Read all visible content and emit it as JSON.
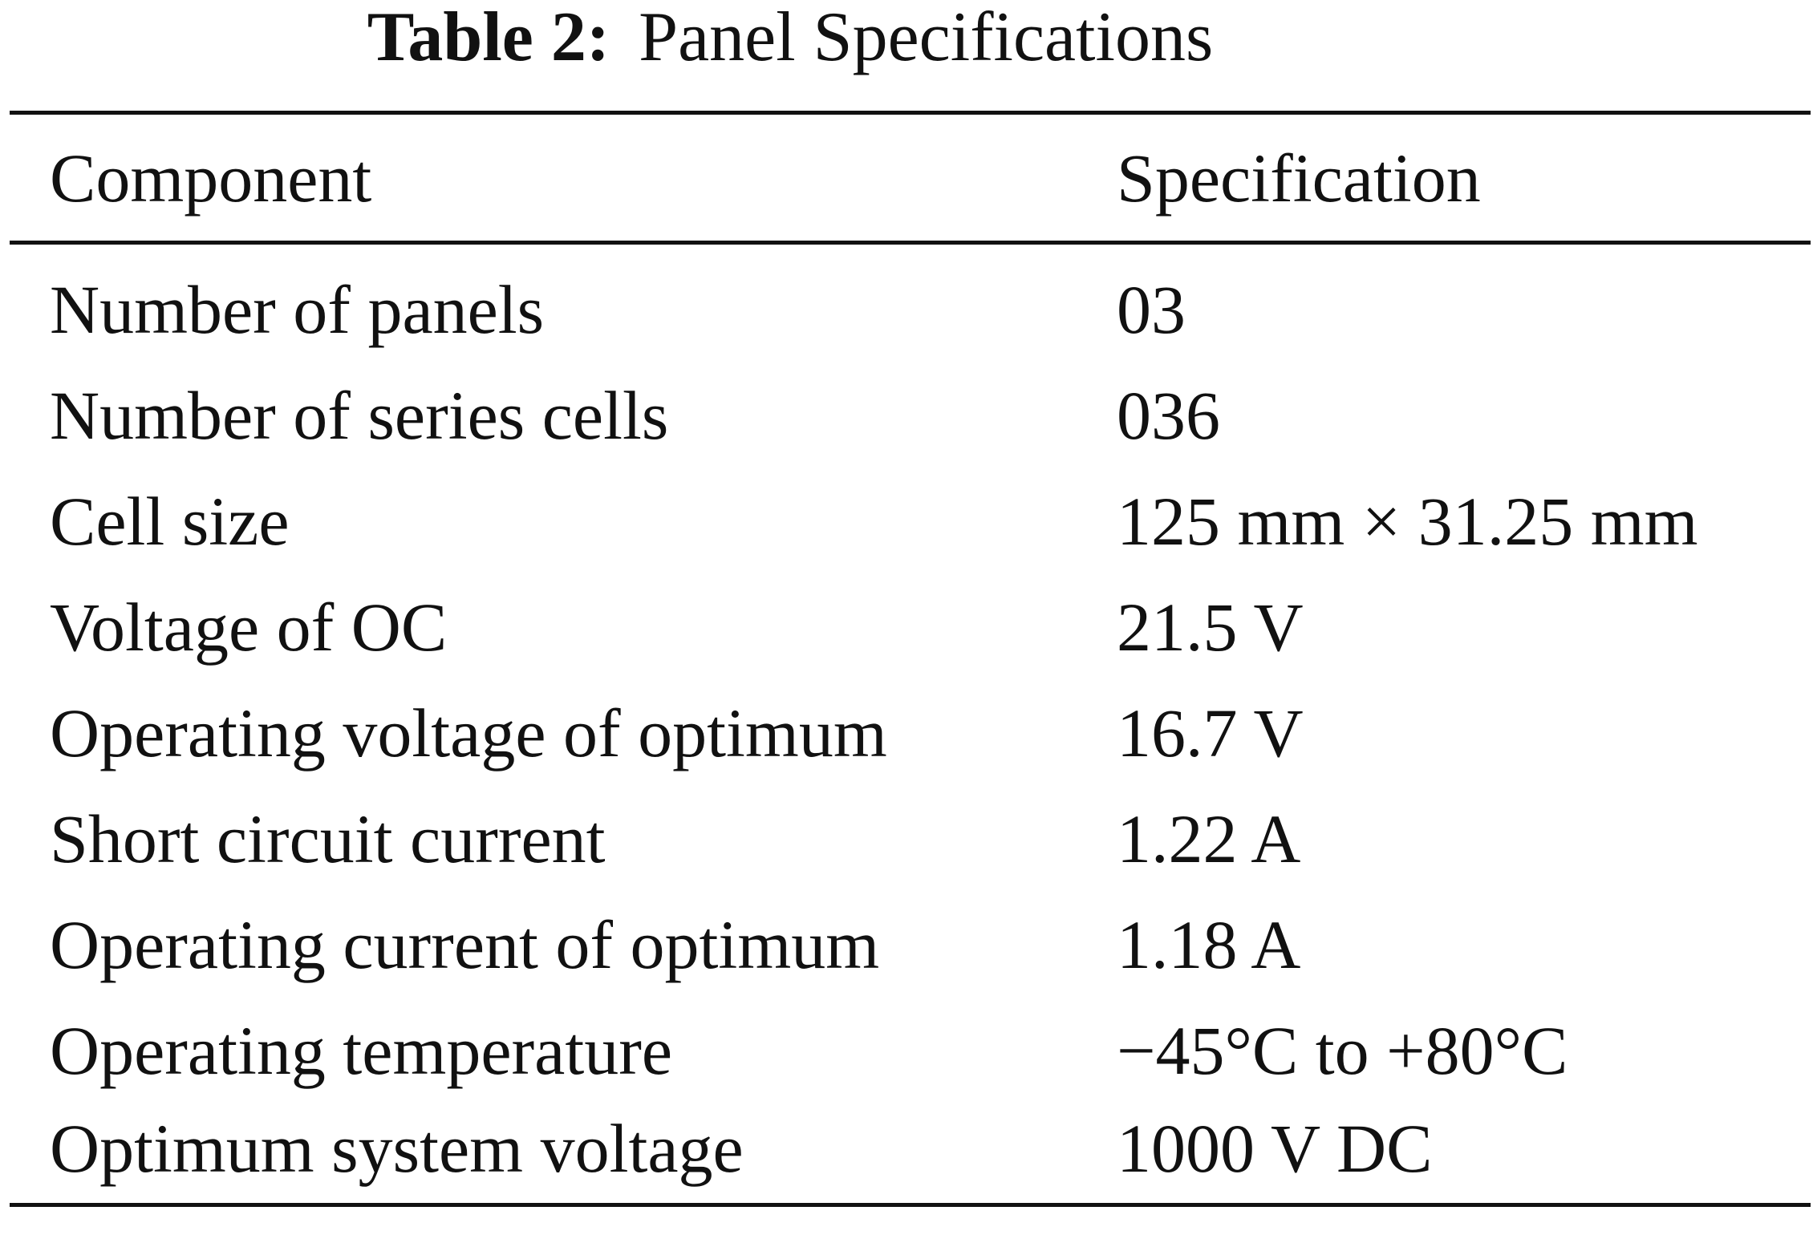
{
  "caption": {
    "label": "Table 2:",
    "title": "Panel Specifications"
  },
  "table": {
    "headers": [
      "Component",
      "Specification"
    ],
    "rows": [
      [
        "Number of panels",
        "03"
      ],
      [
        "Number of series cells",
        "036"
      ],
      [
        "Cell size",
        "125 mm × 31.25 mm"
      ],
      [
        "Voltage of OC",
        "21.5 V"
      ],
      [
        "Operating voltage of optimum",
        "16.7 V"
      ],
      [
        "Short circuit current",
        "1.22 A"
      ],
      [
        "Operating current of optimum",
        "1.18 A"
      ],
      [
        "Operating temperature",
        "−45°C to +80°C"
      ],
      [
        "Optimum system voltage",
        "1000 V DC"
      ]
    ]
  }
}
